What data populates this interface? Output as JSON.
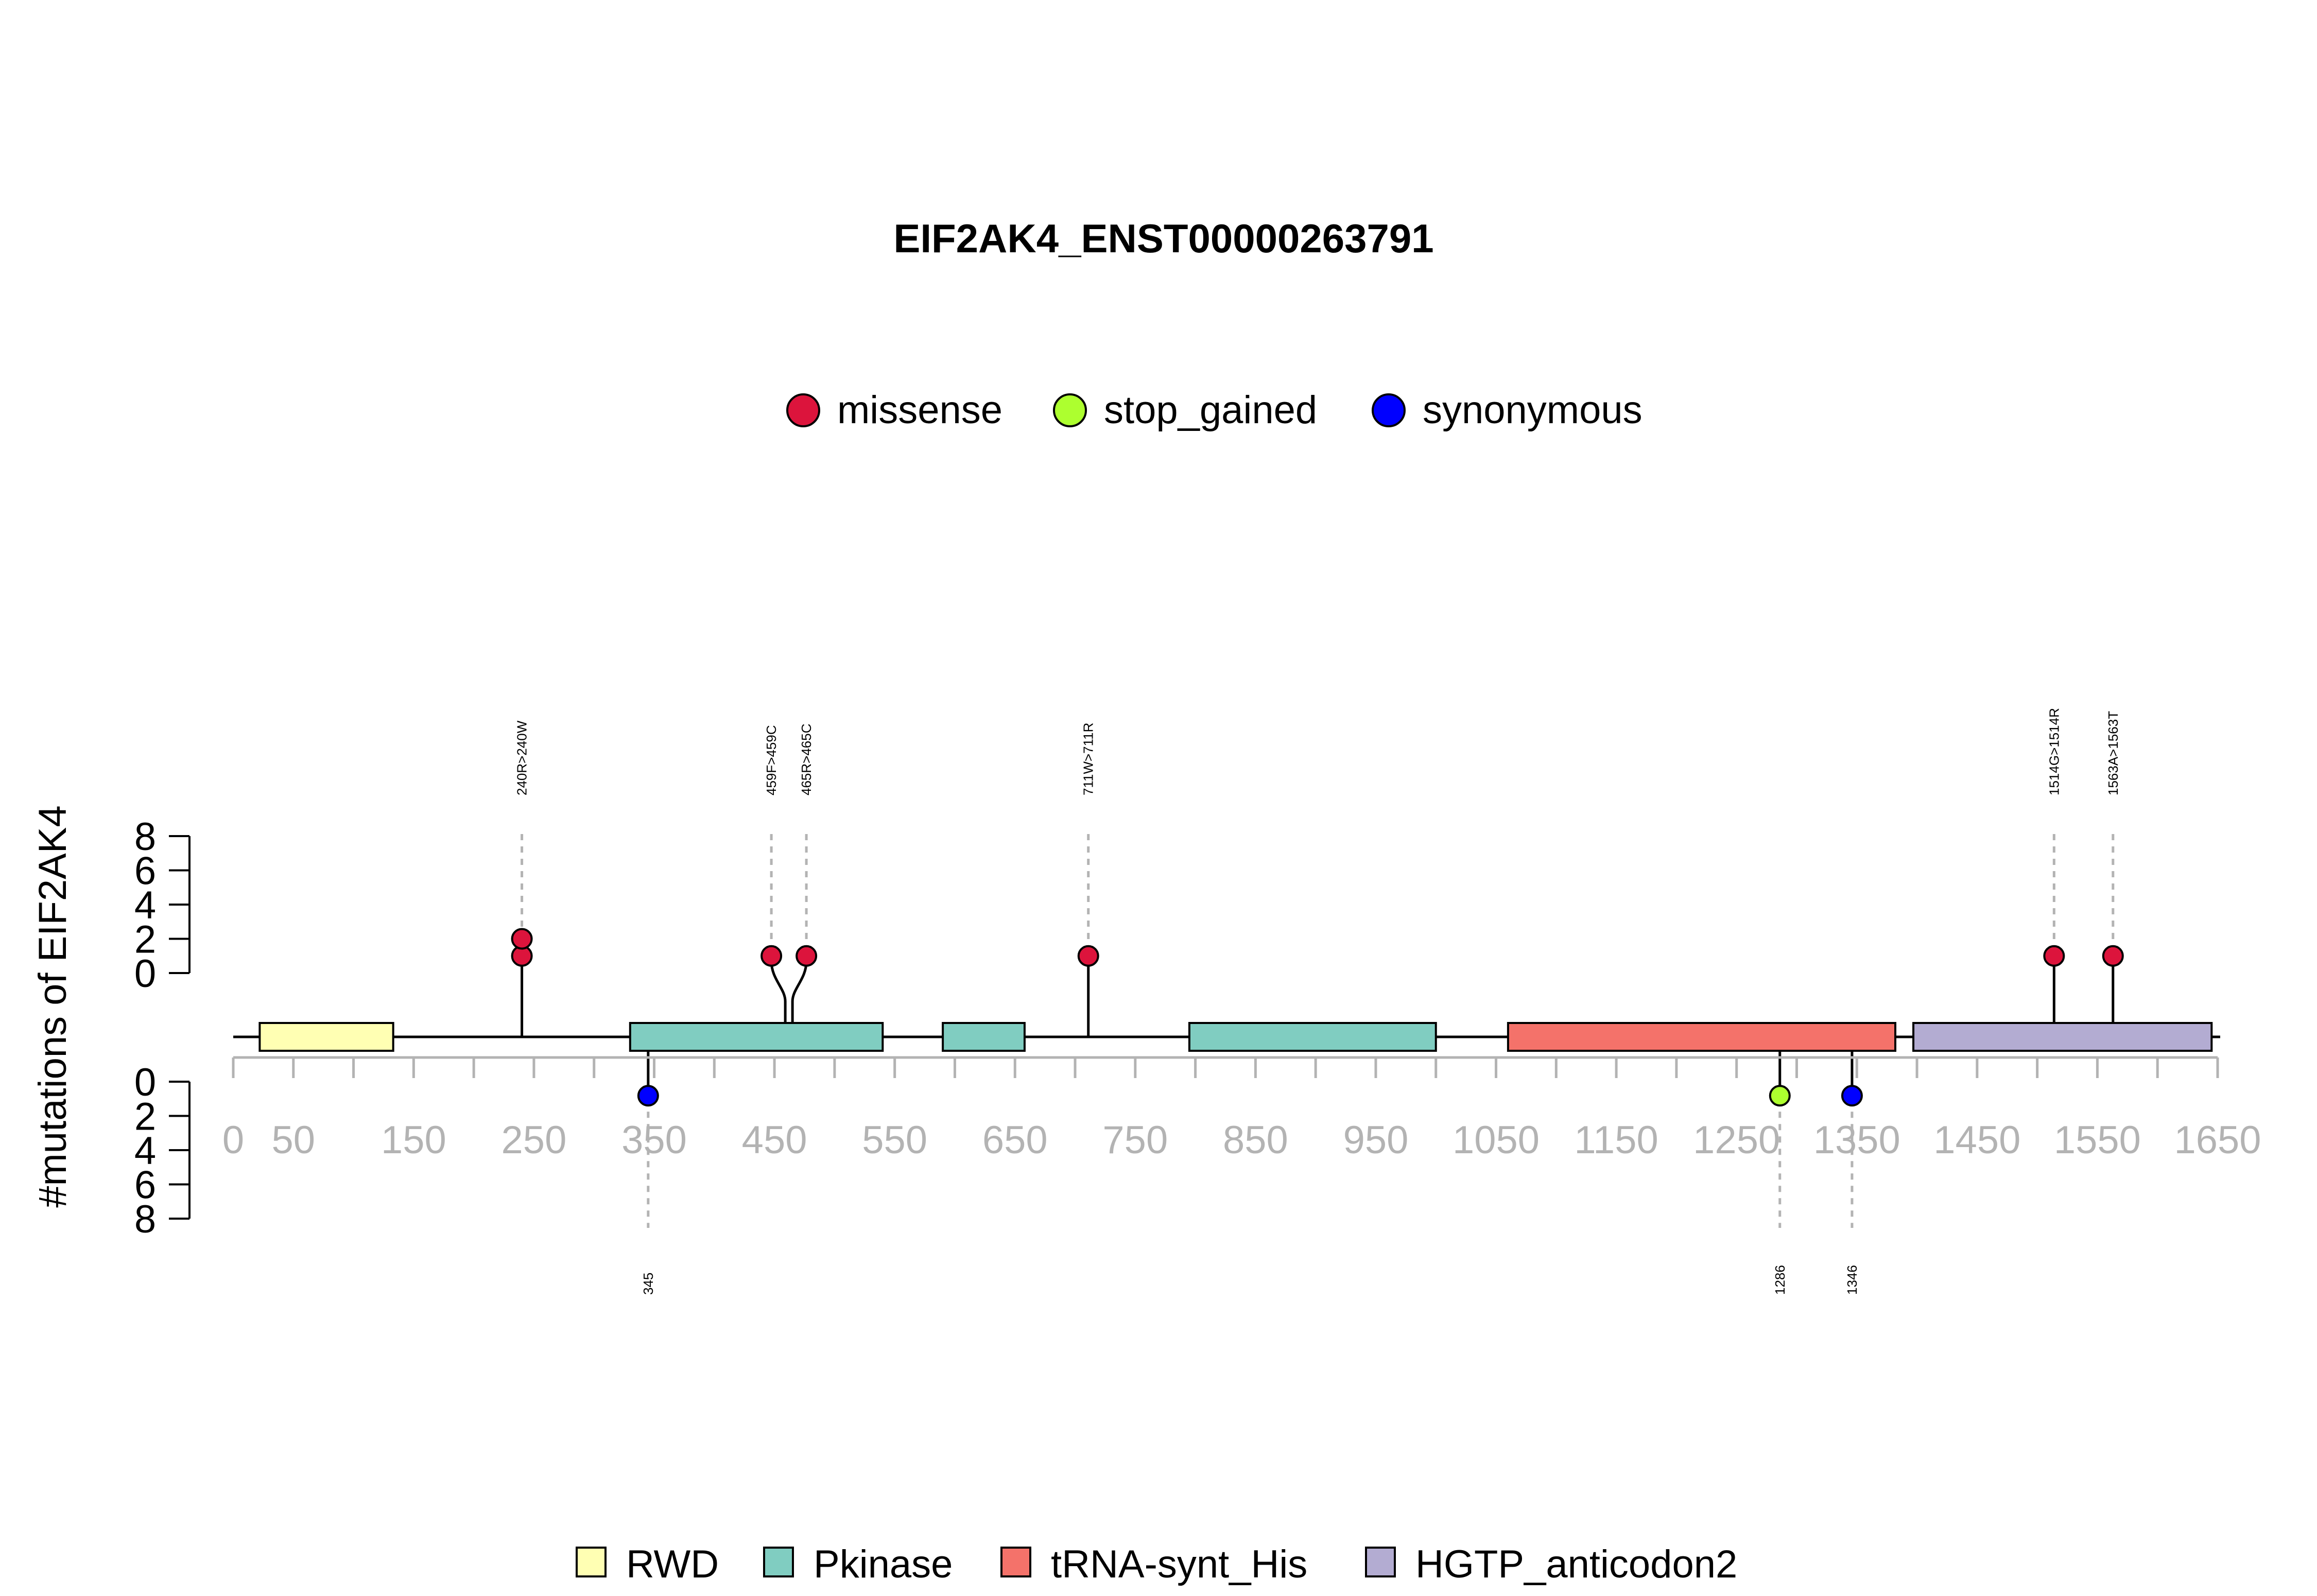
{
  "chart_data": {
    "type": "lollipop",
    "title": "EIF2AK4_ENST00000263791",
    "ylabel": "#mutations of EIF2AK4",
    "xlim": [
      0,
      1650
    ],
    "x_ticks": [
      0,
      50,
      150,
      250,
      350,
      450,
      550,
      650,
      750,
      850,
      950,
      1050,
      1150,
      1250,
      1350,
      1450,
      1550,
      1650
    ],
    "x_minor_step": 50,
    "ylim": [
      0,
      8
    ],
    "y_ticks": [
      0,
      2,
      4,
      6,
      8
    ],
    "mutation_legend": [
      {
        "label": "missense",
        "color": "#DC143C"
      },
      {
        "label": "stop_gained",
        "color": "#ADFF2F"
      },
      {
        "label": "synonymous",
        "color": "#0000FF"
      }
    ],
    "domain_legend": [
      {
        "label": "RWD",
        "color": "#FFFFB3"
      },
      {
        "label": "Pkinase",
        "color": "#80CDC1"
      },
      {
        "label": "tRNA-synt_His",
        "color": "#F4726A"
      },
      {
        "label": "HGTP_anticodon2",
        "color": "#B3ACD2"
      }
    ],
    "domains": [
      {
        "name": "RWD",
        "start": 22,
        "end": 133
      },
      {
        "name": "Pkinase",
        "start": 330,
        "end": 540
      },
      {
        "name": "Pkinase",
        "start": 590,
        "end": 658
      },
      {
        "name": "Pkinase",
        "start": 795,
        "end": 1000
      },
      {
        "name": "tRNA-synt_His",
        "start": 1060,
        "end": 1382
      },
      {
        "name": "HGTP_anticodon2",
        "start": 1397,
        "end": 1645
      }
    ],
    "upper_mutations": [
      {
        "label": "240R>240W",
        "position": 240,
        "count": 2,
        "type": "missense"
      },
      {
        "label": "459F>459C",
        "position": 459,
        "count": 1,
        "type": "missense"
      },
      {
        "label": "465R>465C",
        "position": 465,
        "count": 1,
        "type": "missense"
      },
      {
        "label": "711W>711R",
        "position": 711,
        "count": 1,
        "type": "missense"
      },
      {
        "label": "1514G>1514R",
        "position": 1514,
        "count": 1,
        "type": "missense"
      },
      {
        "label": "1563A>1563T",
        "position": 1563,
        "count": 1,
        "type": "missense"
      }
    ],
    "lower_mutations": [
      {
        "label": "345",
        "position": 345,
        "count": 1,
        "type": "synonymous"
      },
      {
        "label": "1286",
        "position": 1286,
        "count": 1,
        "type": "stop_gained"
      },
      {
        "label": "1346",
        "position": 1346,
        "count": 1,
        "type": "synonymous"
      }
    ]
  }
}
